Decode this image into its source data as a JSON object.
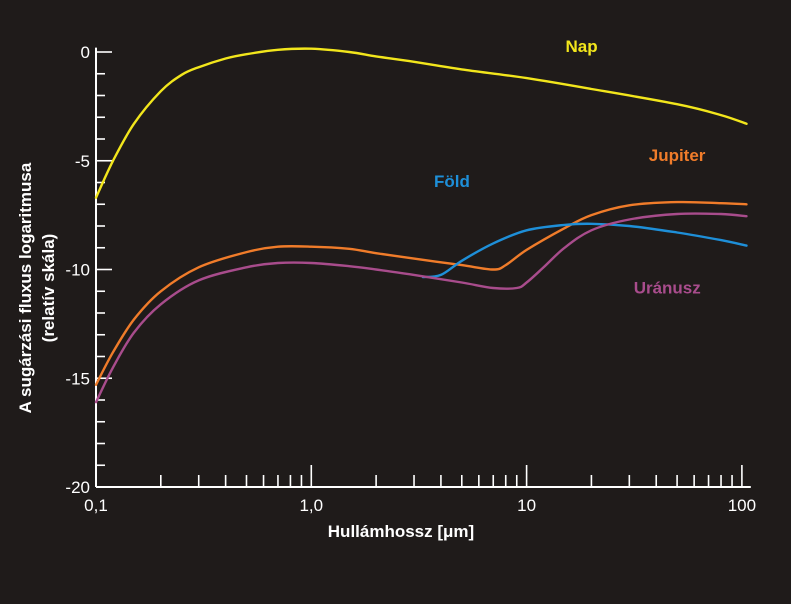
{
  "chart_data": {
    "type": "line",
    "title": "",
    "xlabel": "Hullámhossz [μm]",
    "ylabel_line1": "A sugárzási fluxus logaritmusa",
    "ylabel_line2": "(relatív skála)",
    "xscale": "log",
    "xlim": [
      0.1,
      110
    ],
    "ylim": [
      -20,
      0.5
    ],
    "x_ticks": [
      {
        "value": 0.1,
        "label": "0,1"
      },
      {
        "value": 1,
        "label": "1,0"
      },
      {
        "value": 10,
        "label": "10"
      },
      {
        "value": 100,
        "label": "100"
      }
    ],
    "y_ticks": [
      {
        "value": 0,
        "label": "0"
      },
      {
        "value": -5,
        "label": "-5"
      },
      {
        "value": -10,
        "label": "-10"
      },
      {
        "value": -15,
        "label": "-15"
      },
      {
        "value": -20,
        "label": "-20"
      }
    ],
    "background": "#1f1b1a",
    "axis_color": "#ffffff",
    "series": [
      {
        "name": "Nap",
        "color": "#f2e61c",
        "label_anchor": {
          "x": 18,
          "y": 0
        },
        "points": [
          [
            0.1,
            -6.7
          ],
          [
            0.12,
            -5.0
          ],
          [
            0.15,
            -3.3
          ],
          [
            0.2,
            -1.8
          ],
          [
            0.25,
            -1.05
          ],
          [
            0.3,
            -0.7
          ],
          [
            0.4,
            -0.3
          ],
          [
            0.5,
            -0.1
          ],
          [
            0.7,
            0.1
          ],
          [
            1.0,
            0.15
          ],
          [
            1.5,
            0.0
          ],
          [
            2,
            -0.2
          ],
          [
            3,
            -0.45
          ],
          [
            5,
            -0.8
          ],
          [
            10,
            -1.2
          ],
          [
            20,
            -1.7
          ],
          [
            50,
            -2.4
          ],
          [
            80,
            -2.9
          ],
          [
            105,
            -3.3
          ]
        ]
      },
      {
        "name": "Jupiter",
        "color": "#f07c2a",
        "label_anchor": {
          "x": 50,
          "y": -5
        },
        "points": [
          [
            0.1,
            -15.3
          ],
          [
            0.12,
            -13.8
          ],
          [
            0.15,
            -12.3
          ],
          [
            0.2,
            -11.0
          ],
          [
            0.3,
            -9.9
          ],
          [
            0.5,
            -9.2
          ],
          [
            0.7,
            -8.95
          ],
          [
            1.0,
            -8.95
          ],
          [
            1.5,
            -9.05
          ],
          [
            2,
            -9.25
          ],
          [
            3,
            -9.5
          ],
          [
            5,
            -9.8
          ],
          [
            7,
            -10.0
          ],
          [
            8,
            -9.8
          ],
          [
            10,
            -9.1
          ],
          [
            15,
            -8.1
          ],
          [
            20,
            -7.5
          ],
          [
            30,
            -7.05
          ],
          [
            50,
            -6.9
          ],
          [
            80,
            -6.95
          ],
          [
            105,
            -7.0
          ]
        ]
      },
      {
        "name": "Föld",
        "color": "#1e8fd8",
        "label_anchor": {
          "x": 4.5,
          "y": -6.2
        },
        "points": [
          [
            3.3,
            -10.35
          ],
          [
            4,
            -10.25
          ],
          [
            5,
            -9.6
          ],
          [
            7,
            -8.8
          ],
          [
            10,
            -8.2
          ],
          [
            15,
            -7.95
          ],
          [
            20,
            -7.9
          ],
          [
            30,
            -8.0
          ],
          [
            50,
            -8.3
          ],
          [
            80,
            -8.65
          ],
          [
            105,
            -8.9
          ]
        ]
      },
      {
        "name": "Uránusz",
        "color": "#a84c8c",
        "label_anchor": {
          "x": 45,
          "y": -11.1
        },
        "points": [
          [
            0.1,
            -16.1
          ],
          [
            0.12,
            -14.5
          ],
          [
            0.15,
            -12.9
          ],
          [
            0.2,
            -11.6
          ],
          [
            0.3,
            -10.5
          ],
          [
            0.5,
            -9.9
          ],
          [
            0.7,
            -9.7
          ],
          [
            1.0,
            -9.7
          ],
          [
            1.5,
            -9.85
          ],
          [
            2,
            -10.0
          ],
          [
            3,
            -10.25
          ],
          [
            5,
            -10.6
          ],
          [
            7,
            -10.85
          ],
          [
            9,
            -10.85
          ],
          [
            10,
            -10.6
          ],
          [
            12,
            -9.9
          ],
          [
            15,
            -9.0
          ],
          [
            20,
            -8.2
          ],
          [
            30,
            -7.7
          ],
          [
            50,
            -7.45
          ],
          [
            80,
            -7.45
          ],
          [
            105,
            -7.55
          ]
        ]
      }
    ]
  }
}
